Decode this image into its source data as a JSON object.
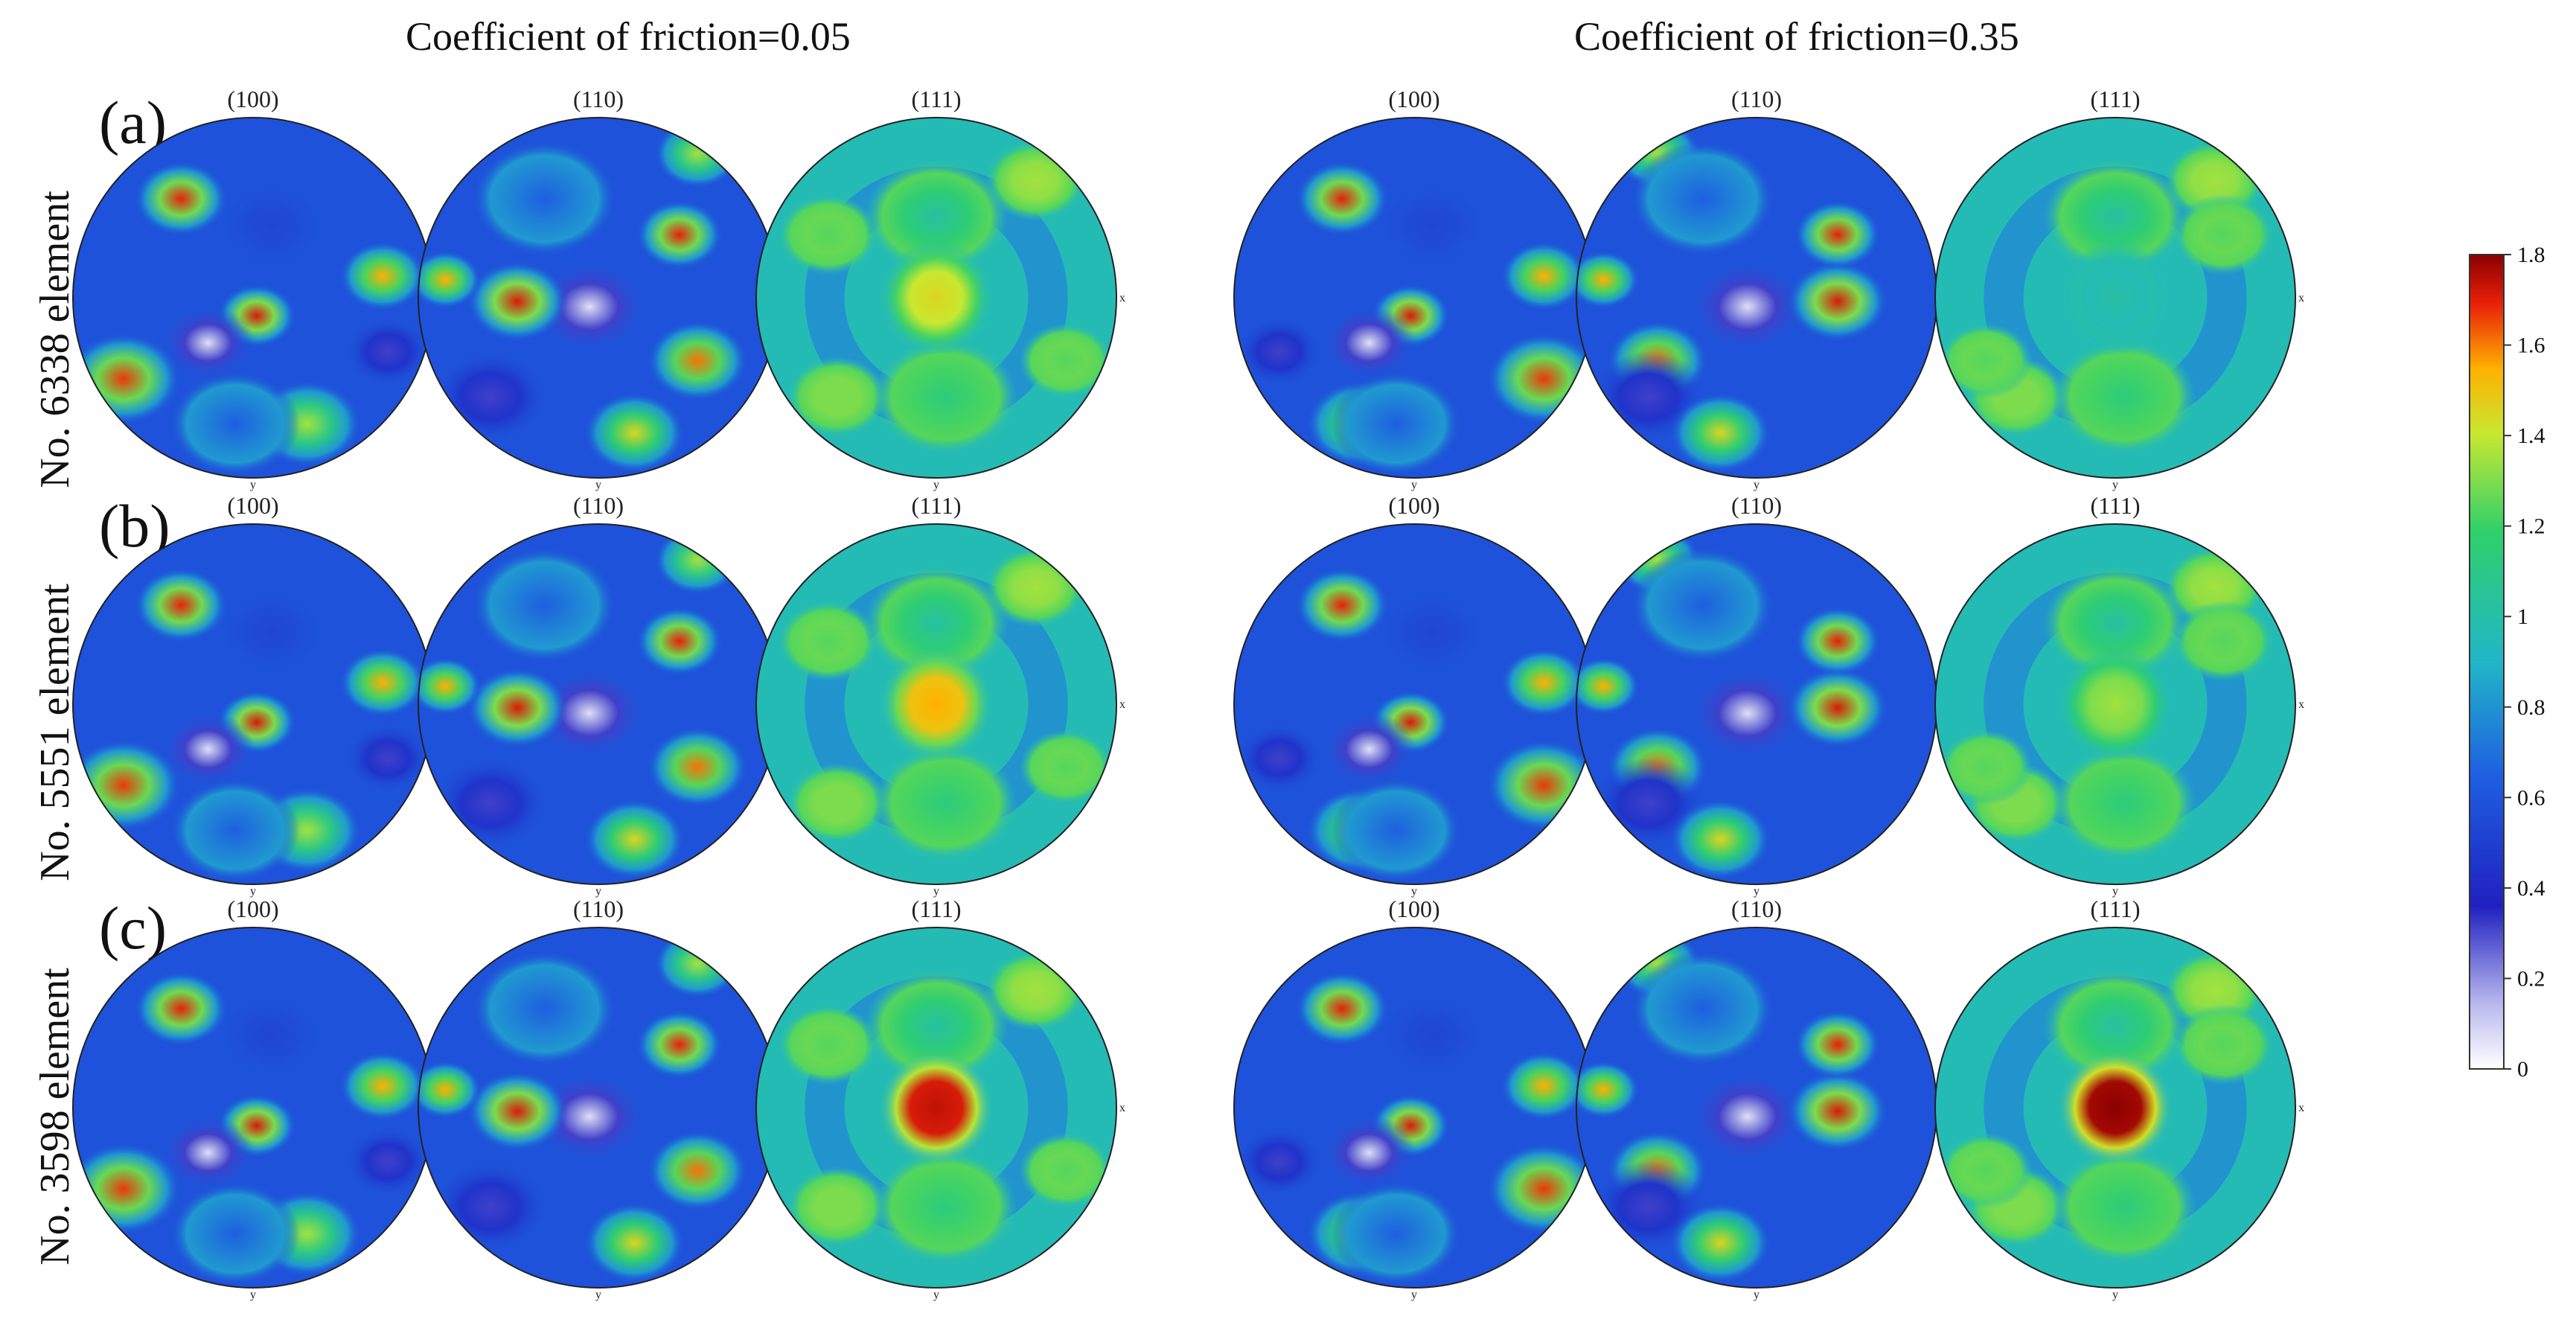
{
  "figure": {
    "group_titles": [
      "Coefficient of friction=0.05",
      "Coefficient of friction=0.35"
    ],
    "rows": [
      {
        "letter": "(a)",
        "label": "No. 6338 element"
      },
      {
        "letter": "(b)",
        "label": "No. 5551 element"
      },
      {
        "letter": "(c)",
        "label": "No. 3598 element"
      }
    ],
    "planes": [
      "(100)",
      "(110)",
      "(111)",
      "(100)",
      "(110)",
      "(111)"
    ],
    "axis_marks": {
      "right": "x",
      "bottom": "y"
    }
  },
  "chart_data": {
    "type": "heatmap",
    "title": "",
    "groups": [
      "Coefficient of friction=0.05",
      "Coefficient of friction=0.35"
    ],
    "rows": [
      "No. 6338 element",
      "No. 5551 element",
      "No. 3598 element"
    ],
    "columns": [
      "(100)",
      "(110)",
      "(111)",
      "(100)",
      "(110)",
      "(111)"
    ],
    "colorbar": {
      "min": 0,
      "max": 1.8,
      "ticks": [
        "1.8",
        "1.6",
        "1.4",
        "1.2",
        "1",
        "0.8",
        "0.6",
        "0.4",
        "0.2",
        "0"
      ],
      "colors": [
        "#ffffff",
        "#2020c0",
        "#1e5fe0",
        "#21b6c8",
        "#2fd06a",
        "#c8e830",
        "#ffb000",
        "#e8200a",
        "#8a0000"
      ]
    },
    "center_peak_111": [
      [
        1.4,
        1.0
      ],
      [
        1.5,
        1.3
      ],
      [
        1.7,
        1.8
      ]
    ]
  }
}
